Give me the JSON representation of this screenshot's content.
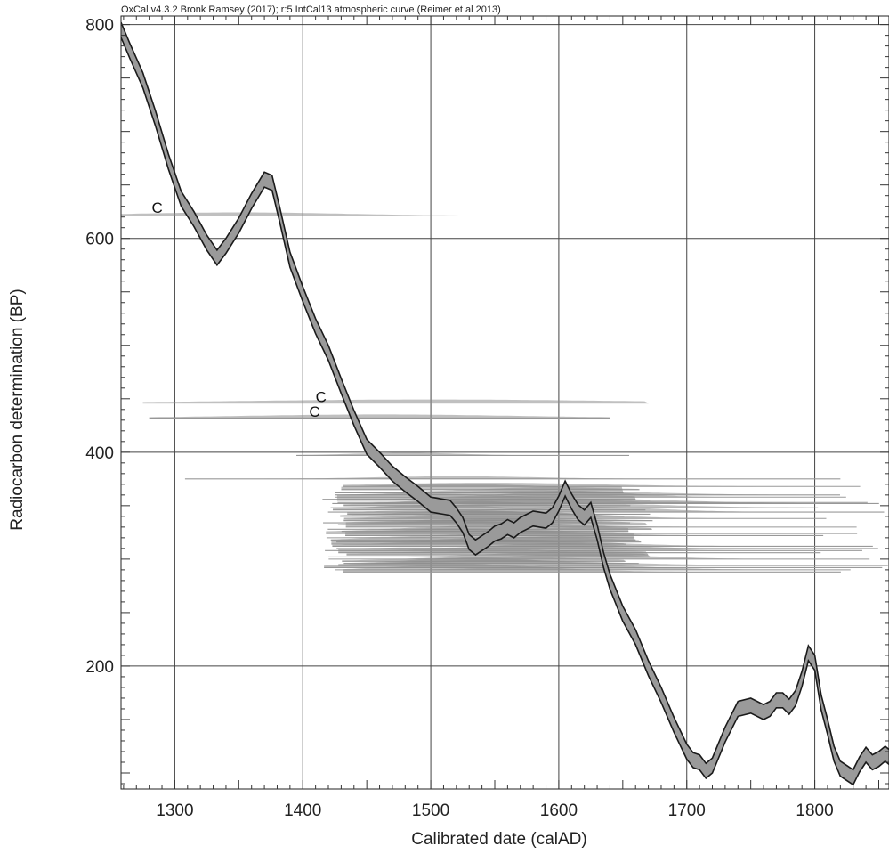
{
  "chart_data": {
    "type": "line",
    "credit": "OxCal v4.3.2 Bronk Ramsey (2017); r:5 IntCal13 atmospheric curve (Reimer et al 2013)",
    "xlabel": "Calibrated date (calAD)",
    "ylabel": "Radiocarbon determination (BP)",
    "xlim": [
      1258,
      1858
    ],
    "ylim": [
      85,
      808
    ],
    "x_ticks": [
      1300,
      1400,
      1500,
      1600,
      1700,
      1800
    ],
    "y_ticks": [
      200,
      400,
      600,
      800
    ],
    "grid": true,
    "calibration_curve": {
      "name": "IntCal13",
      "x": [
        1258,
        1265,
        1275,
        1285,
        1295,
        1305,
        1315,
        1325,
        1333,
        1340,
        1350,
        1360,
        1370,
        1376,
        1382,
        1390,
        1400,
        1410,
        1420,
        1430,
        1440,
        1450,
        1460,
        1470,
        1480,
        1490,
        1500,
        1510,
        1515,
        1520,
        1525,
        1530,
        1535,
        1540,
        1545,
        1550,
        1555,
        1560,
        1565,
        1570,
        1575,
        1580,
        1585,
        1590,
        1595,
        1600,
        1605,
        1610,
        1615,
        1620,
        1625,
        1630,
        1635,
        1640,
        1650,
        1660,
        1670,
        1680,
        1690,
        1700,
        1705,
        1710,
        1715,
        1720,
        1730,
        1740,
        1750,
        1760,
        1765,
        1770,
        1775,
        1780,
        1785,
        1790,
        1795,
        1800,
        1805,
        1810,
        1815,
        1820,
        1825,
        1830,
        1835,
        1840,
        1845,
        1850,
        1855,
        1858
      ],
      "y": [
        795,
        775,
        748,
        712,
        672,
        637,
        618,
        596,
        582,
        593,
        612,
        635,
        655,
        652,
        622,
        580,
        548,
        518,
        493,
        462,
        432,
        405,
        393,
        380,
        370,
        361,
        351,
        349,
        348,
        341,
        332,
        316,
        311,
        315,
        319,
        324,
        326,
        330,
        327,
        332,
        335,
        338,
        337,
        336,
        341,
        352,
        366,
        354,
        344,
        339,
        346,
        325,
        299,
        279,
        249,
        227,
        198,
        173,
        145,
        120,
        112,
        110,
        102,
        107,
        136,
        160,
        163,
        157,
        160,
        168,
        168,
        162,
        170,
        188,
        212,
        203,
        166,
        143,
        118,
        104,
        100,
        96,
        108,
        117,
        110,
        113,
        118,
        115
      ],
      "band_half_width": 7
    },
    "sample_annotations": [
      "C",
      "C",
      "C"
    ],
    "sample_determinations_bp": [
      621,
      446,
      432,
      397,
      375,
      368,
      365,
      362,
      360,
      358,
      356,
      355,
      353,
      352,
      350,
      348,
      346,
      344,
      342,
      340,
      338,
      336,
      334,
      332,
      330,
      328,
      326,
      324,
      322,
      320,
      318,
      316,
      314,
      312,
      310,
      308,
      306,
      304,
      302,
      300,
      298,
      296,
      294,
      292,
      290,
      288
    ]
  }
}
